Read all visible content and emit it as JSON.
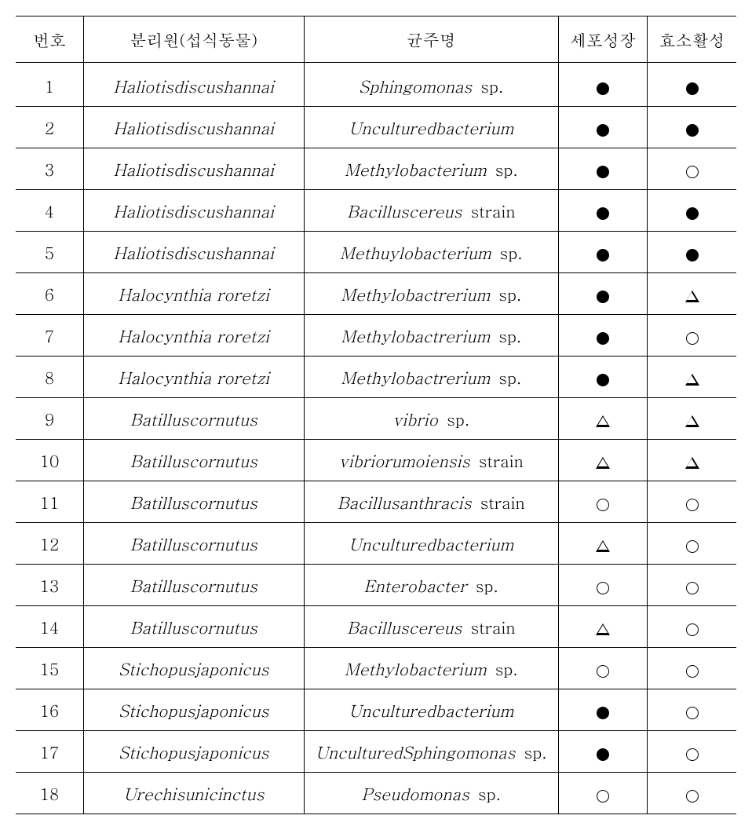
{
  "table": {
    "headers": {
      "num": "번호",
      "source": "분리원(섭식동물)",
      "strain": "균주명",
      "growth": "세포성장",
      "enzyme": "효소활성"
    },
    "columns": {
      "num_width": 80,
      "source_width": 260,
      "strain_width": 300,
      "growth_width": 105,
      "enzyme_width": 105
    },
    "colors": {
      "border": "#000000",
      "background": "#ffffff",
      "text": "#000000"
    },
    "typography": {
      "header_fontsize": 21,
      "cell_fontsize": 21,
      "font_family": "Batang"
    },
    "symbols": {
      "filled_circle": "●",
      "open_circle": "○",
      "open_triangle": "△"
    },
    "rows": [
      {
        "num": "1",
        "source": "Haliotisdiscushannai",
        "strain_italic": "Sphingomonas",
        "strain_suffix": " sp.",
        "growth": "filled",
        "enzyme": "filled"
      },
      {
        "num": "2",
        "source": "Haliotisdiscushannai",
        "strain_italic": "Unculturedbacterium",
        "strain_suffix": "",
        "growth": "filled",
        "enzyme": "filled"
      },
      {
        "num": "3",
        "source": "Haliotisdiscushannai",
        "strain_italic": "Methylobacterium",
        "strain_suffix": " sp.",
        "growth": "filled",
        "enzyme": "open"
      },
      {
        "num": "4",
        "source": "Haliotisdiscushannai",
        "strain_italic": "Bacilluscereus",
        "strain_suffix": " strain",
        "growth": "filled",
        "enzyme": "filled"
      },
      {
        "num": "5",
        "source": "Haliotisdiscushannai",
        "strain_italic": "Methuylobacterium",
        "strain_suffix": " sp.",
        "growth": "filled",
        "enzyme": "filled"
      },
      {
        "num": "6",
        "source": "Halocynthia roretzi",
        "strain_italic": "Methylobactrerium",
        "strain_suffix": " sp.",
        "growth": "filled",
        "enzyme": "triangle"
      },
      {
        "num": "7",
        "source": "Halocynthia roretzi",
        "strain_italic": "Methylobactrerium",
        "strain_suffix": " sp.",
        "growth": "filled",
        "enzyme": "open"
      },
      {
        "num": "8",
        "source": "Halocynthia roretzi",
        "strain_italic": "Methylobactrerium",
        "strain_suffix": " sp.",
        "growth": "filled",
        "enzyme": "triangle"
      },
      {
        "num": "9",
        "source": "Batilluscornutus",
        "strain_italic": "vibrio",
        "strain_suffix": " sp.",
        "growth": "triangle",
        "enzyme": "triangle"
      },
      {
        "num": "10",
        "source": "Batilluscornutus",
        "strain_italic": "vibriorumoiensis",
        "strain_suffix": " strain",
        "growth": "triangle",
        "enzyme": "triangle"
      },
      {
        "num": "11",
        "source": "Batilluscornutus",
        "strain_italic": "Bacillusanthracis",
        "strain_suffix": " strain",
        "growth": "open",
        "enzyme": "open"
      },
      {
        "num": "12",
        "source": "Batilluscornutus",
        "strain_italic": "Unculturedbacterium",
        "strain_suffix": "",
        "growth": "triangle",
        "enzyme": "open"
      },
      {
        "num": "13",
        "source": "Batilluscornutus",
        "strain_italic": "Enterobacter",
        "strain_suffix": " sp.",
        "growth": "open",
        "enzyme": "open"
      },
      {
        "num": "14",
        "source": "Batilluscornutus",
        "strain_italic": "Bacilluscereus",
        "strain_suffix": " strain",
        "growth": "triangle",
        "enzyme": "open"
      },
      {
        "num": "15",
        "source": "Stichopusjaponicus",
        "strain_italic": "Methylobacterium",
        "strain_suffix": " sp.",
        "growth": "open",
        "enzyme": "open"
      },
      {
        "num": "16",
        "source": "Stichopusjaponicus",
        "strain_italic": "Unculturedbacterium",
        "strain_suffix": "",
        "growth": "filled",
        "enzyme": "open"
      },
      {
        "num": "17",
        "source": "Stichopusjaponicus",
        "strain_italic": "UnculturedSphingomonas",
        "strain_suffix": " sp.",
        "growth": "filled",
        "enzyme": "open"
      },
      {
        "num": "18",
        "source": "Urechisunicinctus",
        "strain_italic": "Pseudomonas",
        "strain_suffix": " sp.",
        "growth": "open",
        "enzyme": "open"
      }
    ]
  }
}
